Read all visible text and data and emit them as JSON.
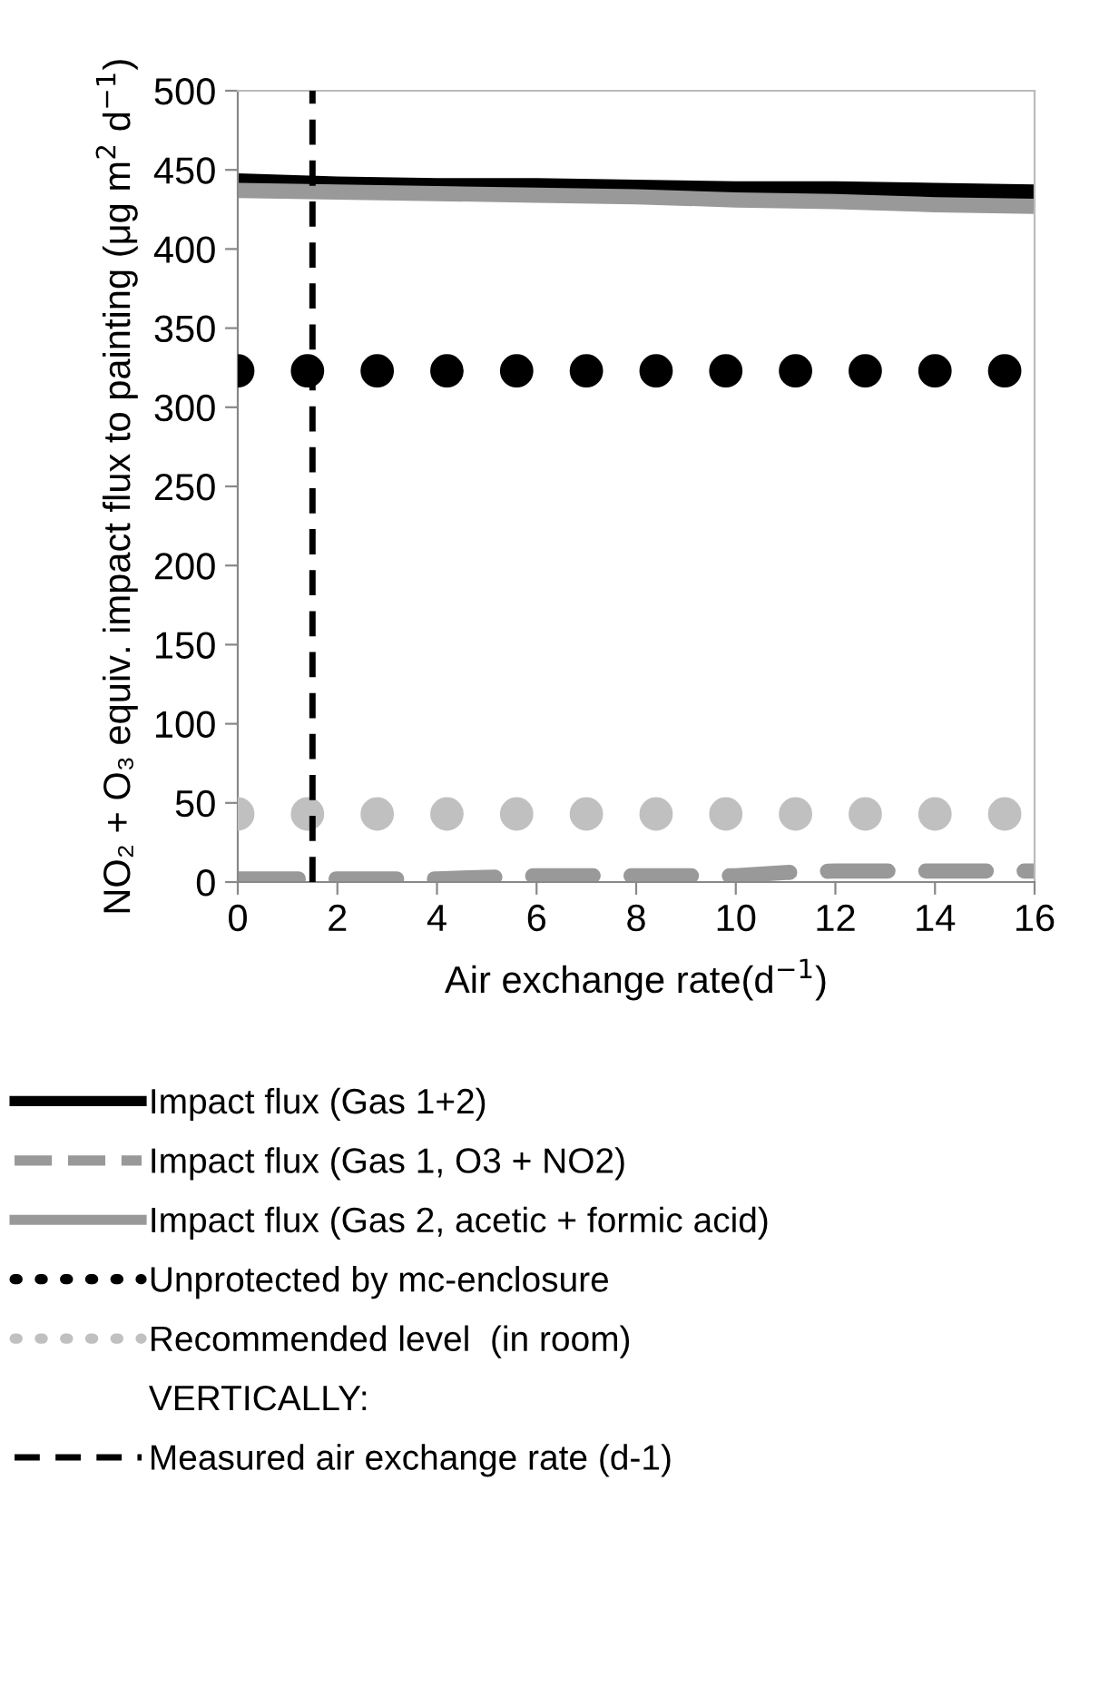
{
  "chart_data": {
    "type": "line",
    "xlabel": "Air exchange rate(d$^{−1}$)",
    "ylabel": "NO₂ + O₃ equiv. impact flux to painting (μg m$^{2}$ d$^{−1}$)",
    "xlim": [
      0,
      16
    ],
    "xticks": [
      0,
      2,
      4,
      6,
      8,
      10,
      12,
      14,
      16
    ],
    "ylim": [
      0,
      500
    ],
    "yticks": [
      0,
      50,
      100,
      150,
      200,
      250,
      300,
      350,
      400,
      450,
      500
    ],
    "grid": false,
    "legend": "bottom",
    "series": [
      {
        "name": "Impact flux (Gas 1+2)",
        "color": "#000000",
        "line_style": "solid",
        "marker": "none",
        "x": [
          0,
          2,
          4,
          6,
          8,
          10,
          12,
          14,
          16
        ],
        "values": [
          443,
          441,
          440,
          440,
          439,
          438,
          438,
          437,
          436
        ]
      },
      {
        "name": "Impact flux (Gas 1, O3 + NO2)",
        "color": "#999999",
        "line_style": "dashed",
        "marker": "none",
        "x": [
          0,
          2,
          4,
          6,
          8,
          10,
          11,
          12,
          14,
          16
        ],
        "values": [
          2,
          2,
          2,
          4,
          4,
          4,
          6,
          7,
          7,
          7
        ]
      },
      {
        "name": "Impact flux (Gas 2, acetic + formic acid)",
        "color": "#999999",
        "line_style": "solid",
        "marker": "none",
        "x": [
          0,
          2,
          4,
          6,
          8,
          10,
          12,
          14,
          16
        ],
        "values": [
          437,
          436,
          435,
          434,
          433,
          431,
          430,
          428,
          427
        ]
      },
      {
        "name": "Unprotected by mc-enclosure",
        "color": "#000000",
        "type": "scatter",
        "marker": "circle",
        "x": [
          0,
          1.4,
          2.8,
          4.2,
          5.6,
          7.0,
          8.4,
          9.8,
          11.2,
          12.6,
          14.0,
          15.4
        ],
        "values": [
          323,
          323,
          323,
          323,
          323,
          323,
          323,
          323,
          323,
          323,
          323,
          323
        ]
      },
      {
        "name": "Recommended level  (in room)",
        "color": "#c0c0c0",
        "type": "scatter",
        "marker": "circle",
        "x": [
          0,
          1.4,
          2.8,
          4.2,
          5.6,
          7.0,
          8.4,
          9.8,
          11.2,
          12.6,
          14.0,
          15.4
        ],
        "values": [
          43,
          43,
          43,
          43,
          43,
          43,
          43,
          43,
          43,
          43,
          43,
          43
        ]
      }
    ],
    "annotations": [
      "VERTICALLY:"
    ],
    "ref_lines": [
      {
        "axis": "x",
        "value": 1.5,
        "label": "Measured air exchange rate (d-1)",
        "color": "#000000",
        "line_style": "dashed"
      }
    ]
  }
}
